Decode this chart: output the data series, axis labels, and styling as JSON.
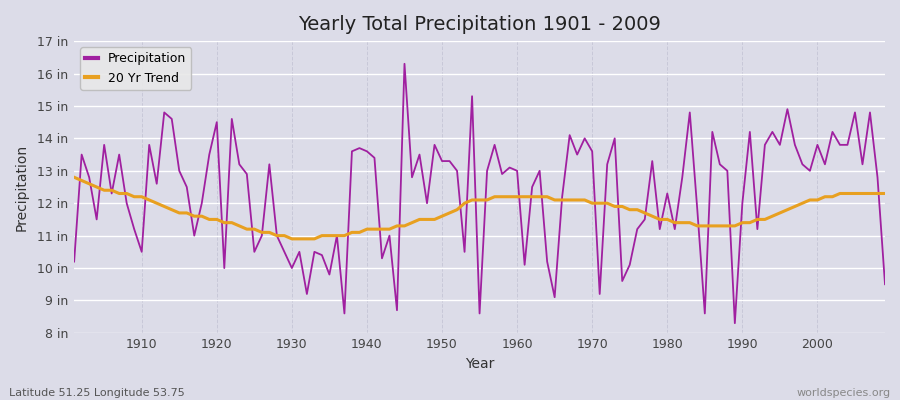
{
  "title": "Yearly Total Precipitation 1901 - 2009",
  "xlabel": "Year",
  "ylabel": "Precipitation",
  "lat_lon_label": "Latitude 51.25 Longitude 53.75",
  "source_label": "worldspecies.org",
  "line_color": "#a020a0",
  "trend_color": "#e8a020",
  "bg_color": "#dcdce8",
  "fig_bg_color": "#dcdce8",
  "grid_h_color": "#ffffff",
  "grid_v_color": "#c8c8d8",
  "ylim": [
    8,
    17
  ],
  "ytick_values": [
    8,
    9,
    10,
    11,
    12,
    13,
    14,
    15,
    16,
    17
  ],
  "xlim_start": 1901,
  "xlim_end": 2009,
  "xticks": [
    1910,
    1920,
    1930,
    1940,
    1950,
    1960,
    1970,
    1980,
    1990,
    2000
  ],
  "years": [
    1901,
    1902,
    1903,
    1904,
    1905,
    1906,
    1907,
    1908,
    1909,
    1910,
    1911,
    1912,
    1913,
    1914,
    1915,
    1916,
    1917,
    1918,
    1919,
    1920,
    1921,
    1922,
    1923,
    1924,
    1925,
    1926,
    1927,
    1928,
    1929,
    1930,
    1931,
    1932,
    1933,
    1934,
    1935,
    1936,
    1937,
    1938,
    1939,
    1940,
    1941,
    1942,
    1943,
    1944,
    1945,
    1946,
    1947,
    1948,
    1949,
    1950,
    1951,
    1952,
    1953,
    1954,
    1955,
    1956,
    1957,
    1958,
    1959,
    1960,
    1961,
    1962,
    1963,
    1964,
    1965,
    1966,
    1967,
    1968,
    1969,
    1970,
    1971,
    1972,
    1973,
    1974,
    1975,
    1976,
    1977,
    1978,
    1979,
    1980,
    1981,
    1982,
    1983,
    1984,
    1985,
    1986,
    1987,
    1988,
    1989,
    1990,
    1991,
    1992,
    1993,
    1994,
    1995,
    1996,
    1997,
    1998,
    1999,
    2000,
    2001,
    2002,
    2003,
    2004,
    2005,
    2006,
    2007,
    2008,
    2009
  ],
  "precipitation": [
    10.2,
    13.5,
    12.8,
    11.5,
    13.8,
    12.3,
    13.5,
    12.0,
    11.2,
    10.5,
    13.8,
    12.6,
    14.8,
    14.6,
    13.0,
    12.5,
    11.0,
    12.0,
    13.5,
    14.5,
    10.0,
    14.6,
    13.2,
    12.9,
    10.5,
    11.0,
    13.2,
    11.0,
    10.5,
    10.0,
    10.5,
    9.2,
    10.5,
    10.4,
    9.8,
    11.0,
    8.6,
    13.6,
    13.7,
    13.6,
    13.4,
    10.3,
    11.0,
    8.7,
    16.3,
    12.8,
    13.5,
    12.0,
    13.8,
    13.3,
    13.3,
    13.0,
    10.5,
    15.3,
    8.6,
    13.0,
    13.8,
    12.9,
    13.1,
    13.0,
    10.1,
    12.5,
    13.0,
    10.2,
    9.1,
    12.2,
    14.1,
    13.5,
    14.0,
    13.6,
    9.2,
    13.2,
    14.0,
    9.6,
    10.1,
    11.2,
    11.5,
    13.3,
    11.2,
    12.3,
    11.2,
    12.8,
    14.8,
    11.8,
    8.6,
    14.2,
    13.2,
    13.0,
    8.3,
    12.0,
    14.2,
    11.2,
    13.8,
    14.2,
    13.8,
    14.9,
    13.8,
    13.2,
    13.0,
    13.8,
    13.2,
    14.2,
    13.8,
    13.8,
    14.8,
    13.2,
    14.8,
    12.8,
    9.5
  ],
  "trend": [
    12.8,
    12.7,
    12.6,
    12.5,
    12.4,
    12.4,
    12.3,
    12.3,
    12.2,
    12.2,
    12.1,
    12.0,
    11.9,
    11.8,
    11.7,
    11.7,
    11.6,
    11.6,
    11.5,
    11.5,
    11.4,
    11.4,
    11.3,
    11.2,
    11.2,
    11.1,
    11.1,
    11.0,
    11.0,
    10.9,
    10.9,
    10.9,
    10.9,
    11.0,
    11.0,
    11.0,
    11.0,
    11.1,
    11.1,
    11.2,
    11.2,
    11.2,
    11.2,
    11.3,
    11.3,
    11.4,
    11.5,
    11.5,
    11.5,
    11.6,
    11.7,
    11.8,
    12.0,
    12.1,
    12.1,
    12.1,
    12.2,
    12.2,
    12.2,
    12.2,
    12.2,
    12.2,
    12.2,
    12.2,
    12.1,
    12.1,
    12.1,
    12.1,
    12.1,
    12.0,
    12.0,
    12.0,
    11.9,
    11.9,
    11.8,
    11.8,
    11.7,
    11.6,
    11.5,
    11.5,
    11.4,
    11.4,
    11.4,
    11.3,
    11.3,
    11.3,
    11.3,
    11.3,
    11.3,
    11.4,
    11.4,
    11.5,
    11.5,
    11.6,
    11.7,
    11.8,
    11.9,
    12.0,
    12.1,
    12.1,
    12.2,
    12.2,
    12.3,
    12.3,
    12.3,
    12.3,
    12.3,
    12.3,
    12.3
  ],
  "legend_precipitation": "Precipitation",
  "legend_trend": "20 Yr Trend",
  "title_fontsize": 14,
  "axis_label_fontsize": 10,
  "tick_fontsize": 9,
  "footer_fontsize": 8
}
